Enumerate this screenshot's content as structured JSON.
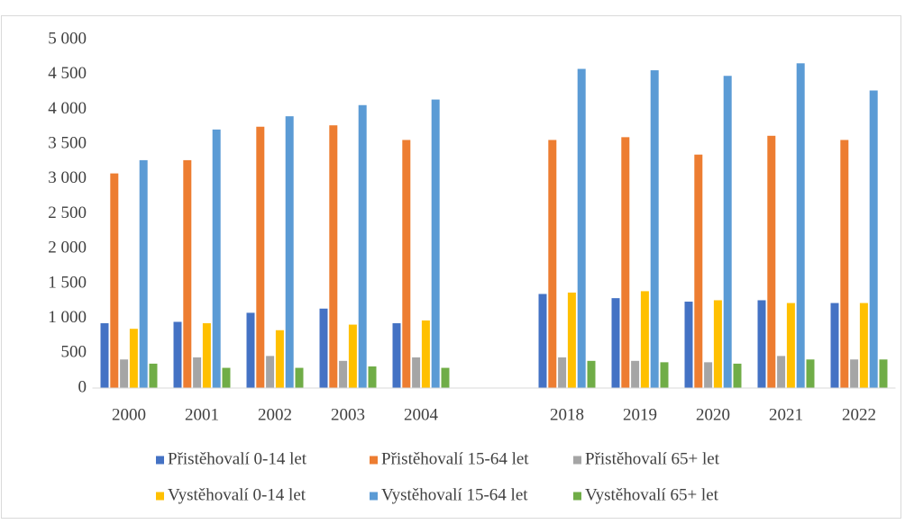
{
  "chart_data": {
    "type": "bar",
    "categories": [
      "2000",
      "2001",
      "2002",
      "2003",
      "2004",
      null,
      "2018",
      "2019",
      "2020",
      "2021",
      "2022"
    ],
    "series": [
      {
        "name": "Přistěhovalí 0-14 let",
        "color": "#4472c4",
        "values": [
          930,
          950,
          1080,
          1140,
          930,
          null,
          1350,
          1290,
          1240,
          1260,
          1220
        ]
      },
      {
        "name": "Přistěhovalí 15-64 let",
        "color": "#ed7d31",
        "values": [
          3080,
          3270,
          3750,
          3770,
          3560,
          null,
          3560,
          3600,
          3350,
          3620,
          3560
        ]
      },
      {
        "name": "Přistěhovalí 65+ let",
        "color": "#a5a5a5",
        "values": [
          410,
          440,
          460,
          390,
          440,
          null,
          440,
          390,
          370,
          460,
          410
        ]
      },
      {
        "name": "Vystěhovalí 0-14 let",
        "color": "#ffc000",
        "values": [
          850,
          930,
          830,
          910,
          970,
          null,
          1370,
          1390,
          1260,
          1220,
          1220
        ]
      },
      {
        "name": "Vystěhovalí 15-64 let",
        "color": "#5b9bd5",
        "values": [
          3270,
          3710,
          3900,
          4060,
          4140,
          null,
          4580,
          4560,
          4480,
          4660,
          4270
        ]
      },
      {
        "name": "Vystěhovalí 65+ let",
        "color": "#70ad47",
        "values": [
          350,
          290,
          290,
          310,
          290,
          null,
          390,
          370,
          350,
          410,
          410
        ]
      }
    ],
    "ylim": [
      0,
      5000
    ],
    "yticks": [
      0,
      500,
      {
        "value": 1000,
        "label": "1 000"
      },
      {
        "value": 1500,
        "label": "1 500"
      },
      {
        "value": 2000,
        "label": "2 000"
      },
      {
        "value": 2500,
        "label": "2 500"
      },
      {
        "value": 3000,
        "label": "3 000"
      },
      {
        "value": 3500,
        "label": "3 500"
      },
      {
        "value": 4000,
        "label": "4 000"
      },
      {
        "value": 4500,
        "label": "4 500"
      },
      {
        "value": 5000,
        "label": "5 000"
      }
    ],
    "grid": false
  }
}
